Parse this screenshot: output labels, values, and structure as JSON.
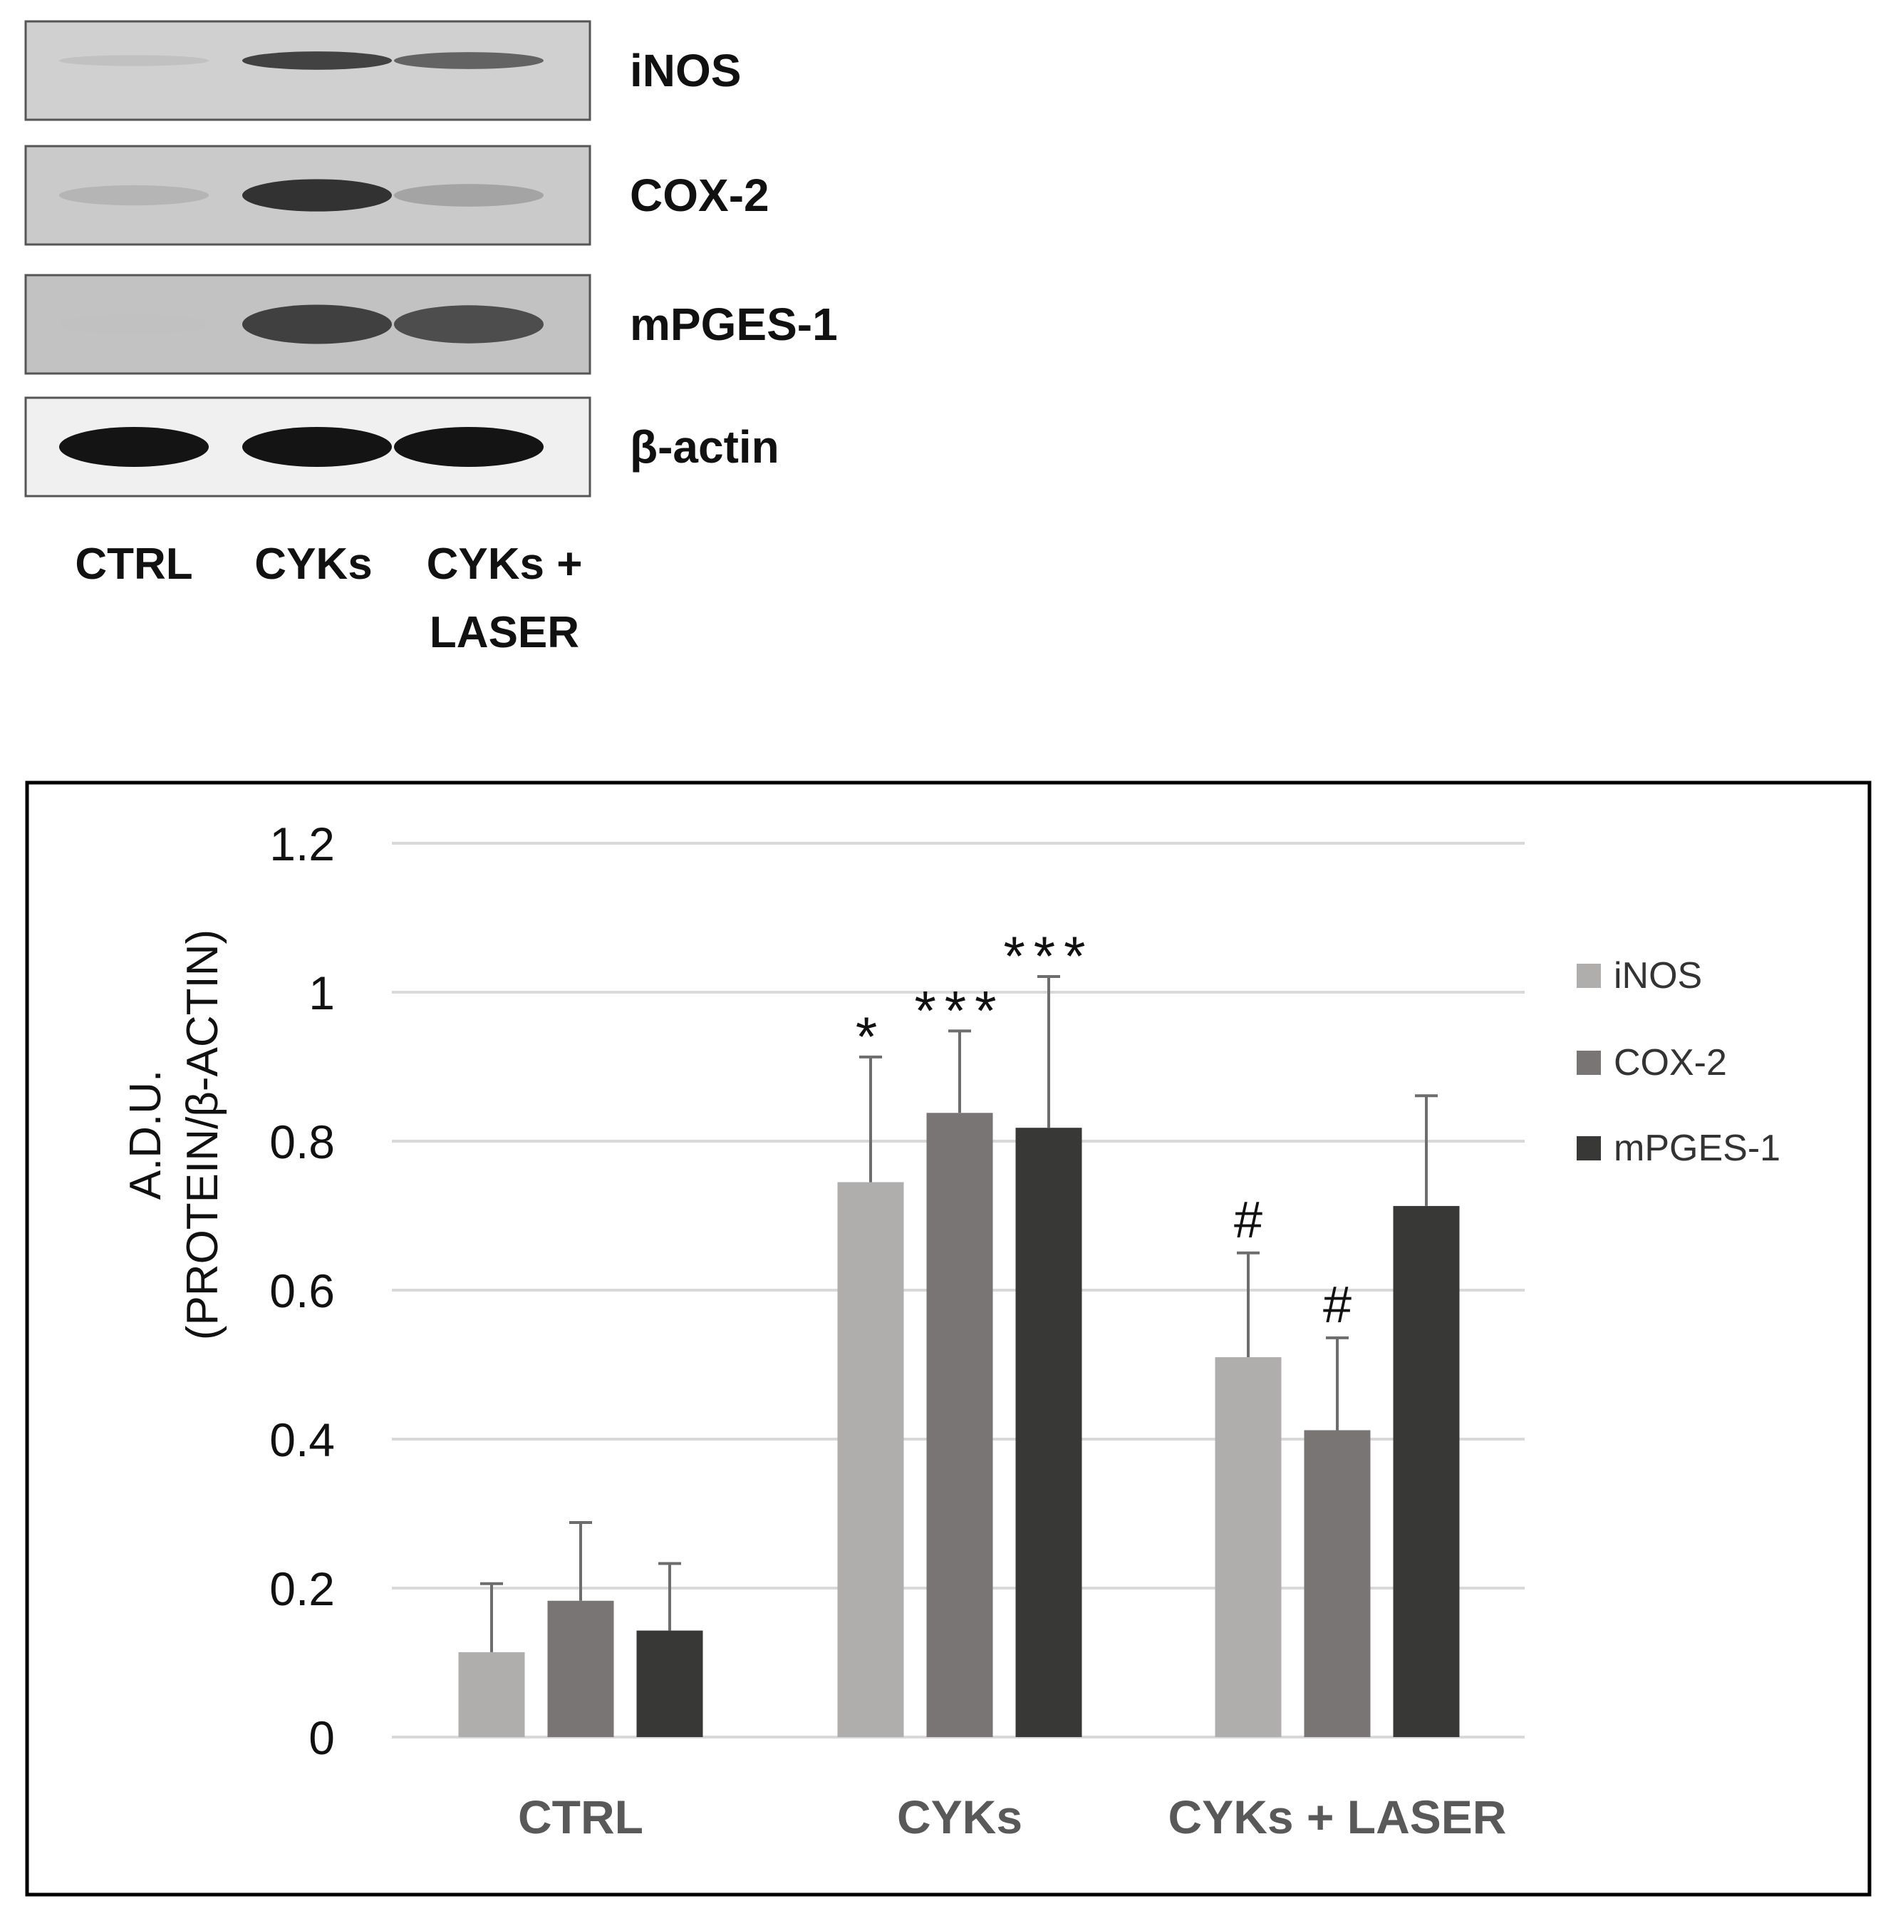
{
  "blot": {
    "bands": [
      {
        "label": "iNOS",
        "intensities": [
          0.18,
          0.85,
          0.72
        ]
      },
      {
        "label": "COX-2",
        "intensities": [
          0.25,
          0.9,
          0.38
        ]
      },
      {
        "label": "mPGES-1",
        "intensities": [
          0.05,
          0.85,
          0.8
        ]
      },
      {
        "label": "β-actin",
        "intensities": [
          1.0,
          1.0,
          1.0
        ]
      }
    ],
    "lanes": [
      {
        "lines": [
          "CTRL"
        ]
      },
      {
        "lines": [
          "CYKs"
        ]
      },
      {
        "lines": [
          "CYKs +",
          "LASER"
        ]
      }
    ]
  },
  "chart_data": {
    "type": "bar",
    "categories": [
      "CTRL",
      "CYKs",
      "CYKs + LASER"
    ],
    "ylabel_lines": [
      "A.D.U.",
      "(PROTEIN/β-ACTIN)"
    ],
    "xlabel": "",
    "ylim": [
      0,
      1.2
    ],
    "yticks": [
      0,
      0.2,
      0.4,
      0.6,
      0.8,
      1,
      1.2
    ],
    "ytick_labels": [
      "0",
      "0.2",
      "0.4",
      "0.6",
      "0.8",
      "1",
      "1.2"
    ],
    "grid": true,
    "legend_position": "right",
    "series": [
      {
        "name": "iNOS",
        "color": "#b0aeac",
        "values": [
          0.114,
          0.745,
          0.51
        ],
        "errors": [
          0.092,
          0.168,
          0.14
        ],
        "annotations": [
          "",
          "*",
          "#"
        ]
      },
      {
        "name": "COX-2",
        "color": "#787574",
        "values": [
          0.183,
          0.838,
          0.412
        ],
        "errors": [
          0.105,
          0.11,
          0.124
        ],
        "annotations": [
          "",
          "***",
          "#"
        ]
      },
      {
        "name": "mPGES-1",
        "color": "#383836",
        "values": [
          0.143,
          0.818,
          0.713
        ],
        "errors": [
          0.09,
          0.203,
          0.148
        ],
        "annotations": [
          "",
          "***",
          ""
        ]
      }
    ]
  }
}
